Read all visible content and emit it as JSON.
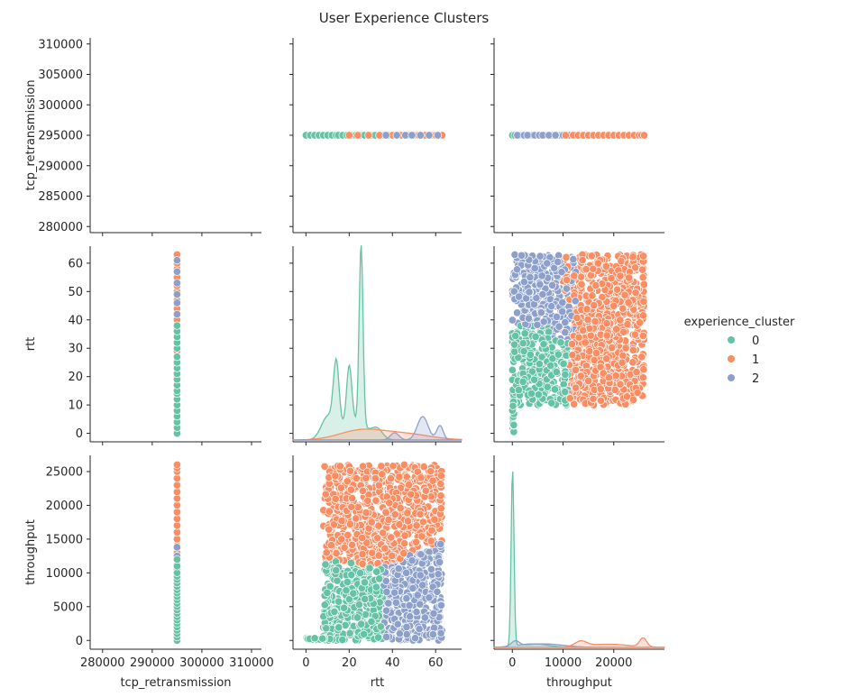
{
  "title": "User Experience Clusters",
  "colors": {
    "0": "#66c2a5",
    "1": "#fc8d62",
    "2": "#8da0cb"
  },
  "chart_data": {
    "type": "scatter",
    "subtype": "pairplot",
    "title": "User Experience Clusters",
    "variables": [
      "tcp_retransmission",
      "rtt",
      "throughput"
    ],
    "hue": "experience_cluster",
    "legend": {
      "title": "experience_cluster",
      "placement": "right",
      "entries": [
        {
          "label": "0",
          "color": "#66c2a5"
        },
        {
          "label": "1",
          "color": "#fc8d62"
        },
        {
          "label": "2",
          "color": "#8da0cb"
        }
      ]
    },
    "grid": false,
    "axes": {
      "tcp_retransmission": {
        "label": "tcp_retransmission",
        "ylim": [
          279000,
          311000
        ],
        "yticks": [
          "280000",
          "285000",
          "290000",
          "295000",
          "300000",
          "305000",
          "310000"
        ],
        "xlim": [
          277500,
          312000
        ],
        "xticks": [
          "280000",
          "290000",
          "300000",
          "310000"
        ]
      },
      "rtt": {
        "label": "rtt",
        "lim": [
          -3,
          66
        ],
        "ticks": [
          "0",
          "10",
          "20",
          "30",
          "40",
          "50",
          "60"
        ],
        "xlim": [
          -6,
          72
        ],
        "xticks": [
          "0",
          "20",
          "40",
          "60"
        ]
      },
      "throughput": {
        "label": "throughput",
        "lim": [
          -1300,
          27400
        ],
        "ticks": [
          "0",
          "5000",
          "10000",
          "15000",
          "20000",
          "25000"
        ],
        "xlim": [
          -3600,
          30000
        ],
        "xticks": [
          "0",
          "10000",
          "20000"
        ]
      }
    },
    "constant_value": {
      "tcp_retransmission": 295000
    },
    "clusters": [
      {
        "name": "0",
        "rtt_range": [
          0,
          38
        ],
        "throughput_range": [
          0,
          12000
        ],
        "rtt_peaks": [
          14,
          20,
          25
        ]
      },
      {
        "name": "1",
        "rtt_range": [
          10,
          63
        ],
        "throughput_range": [
          10000,
          26000
        ]
      },
      {
        "name": "2",
        "rtt_range": [
          35,
          63
        ],
        "throughput_range": [
          0,
          15000
        ],
        "rtt_peaks": [
          54,
          62
        ]
      }
    ],
    "strip_samples": {
      "0": [
        0,
        2,
        4,
        6,
        8,
        10,
        12,
        14,
        15,
        17,
        19,
        21,
        23,
        25,
        27,
        30,
        32,
        34,
        36,
        38
      ],
      "1": [
        20,
        24,
        29,
        34,
        40,
        44,
        47,
        50,
        52,
        55,
        58,
        60,
        62,
        63
      ],
      "2": [
        37,
        42,
        46,
        49,
        53,
        57,
        61
      ],
      "throughput_0": [
        0,
        500,
        1000,
        1500,
        2000,
        2500,
        3000,
        3500,
        4000,
        4500,
        5000,
        5500,
        6000,
        6500,
        7000,
        7500,
        8000,
        8500,
        9000,
        9500,
        10000,
        11000,
        12000
      ],
      "throughput_1": [
        10500,
        12000,
        13000,
        14000,
        15000,
        16000,
        17000,
        18000,
        19000,
        20000,
        21000,
        22000,
        23000,
        24000,
        25000,
        25500,
        26000
      ],
      "throughput_2": [
        1000,
        2300,
        3000,
        4400,
        5300,
        6000,
        7200,
        8500,
        10000,
        11200,
        12500,
        13800
      ]
    }
  }
}
